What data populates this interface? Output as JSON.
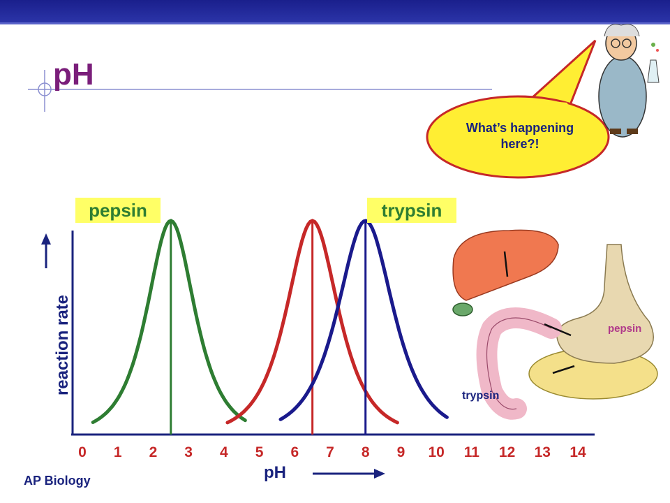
{
  "slide": {
    "title": "pH",
    "footer": "AP Biology",
    "speech_bubble": "What’s happening here?!",
    "illustration_labels": {
      "stomach": "pepsin",
      "intestine": "trypsin"
    }
  },
  "colors": {
    "pepsin": "#2e7d32",
    "middle": "#c62828",
    "trypsin": "#1a1a8c",
    "axis": "#1a237e",
    "highlight": "#ffff66"
  },
  "chart_data": {
    "type": "line",
    "xlabel": "pH",
    "ylabel": "reaction rate",
    "x_ticks": [
      0,
      1,
      2,
      3,
      4,
      5,
      6,
      7,
      8,
      9,
      10,
      11,
      12,
      13,
      14
    ],
    "xlim": [
      0,
      14
    ],
    "ylim": [
      0,
      1
    ],
    "series": [
      {
        "name": "pepsin",
        "optimum": 2.5,
        "width": 0.6,
        "values_note": "",
        "color": "#2e7d32",
        "range": [
          0.3,
          4.6
        ]
      },
      {
        "name": "",
        "optimum": 6.5,
        "width": 0.65,
        "color": "#c62828",
        "range": [
          4.1,
          8.9
        ]
      },
      {
        "name": "trypsin",
        "optimum": 8.0,
        "width": 0.7,
        "color": "#1a1a8c",
        "range": [
          5.6,
          10.3
        ]
      }
    ],
    "annotations": [
      "pepsin",
      "trypsin"
    ]
  }
}
